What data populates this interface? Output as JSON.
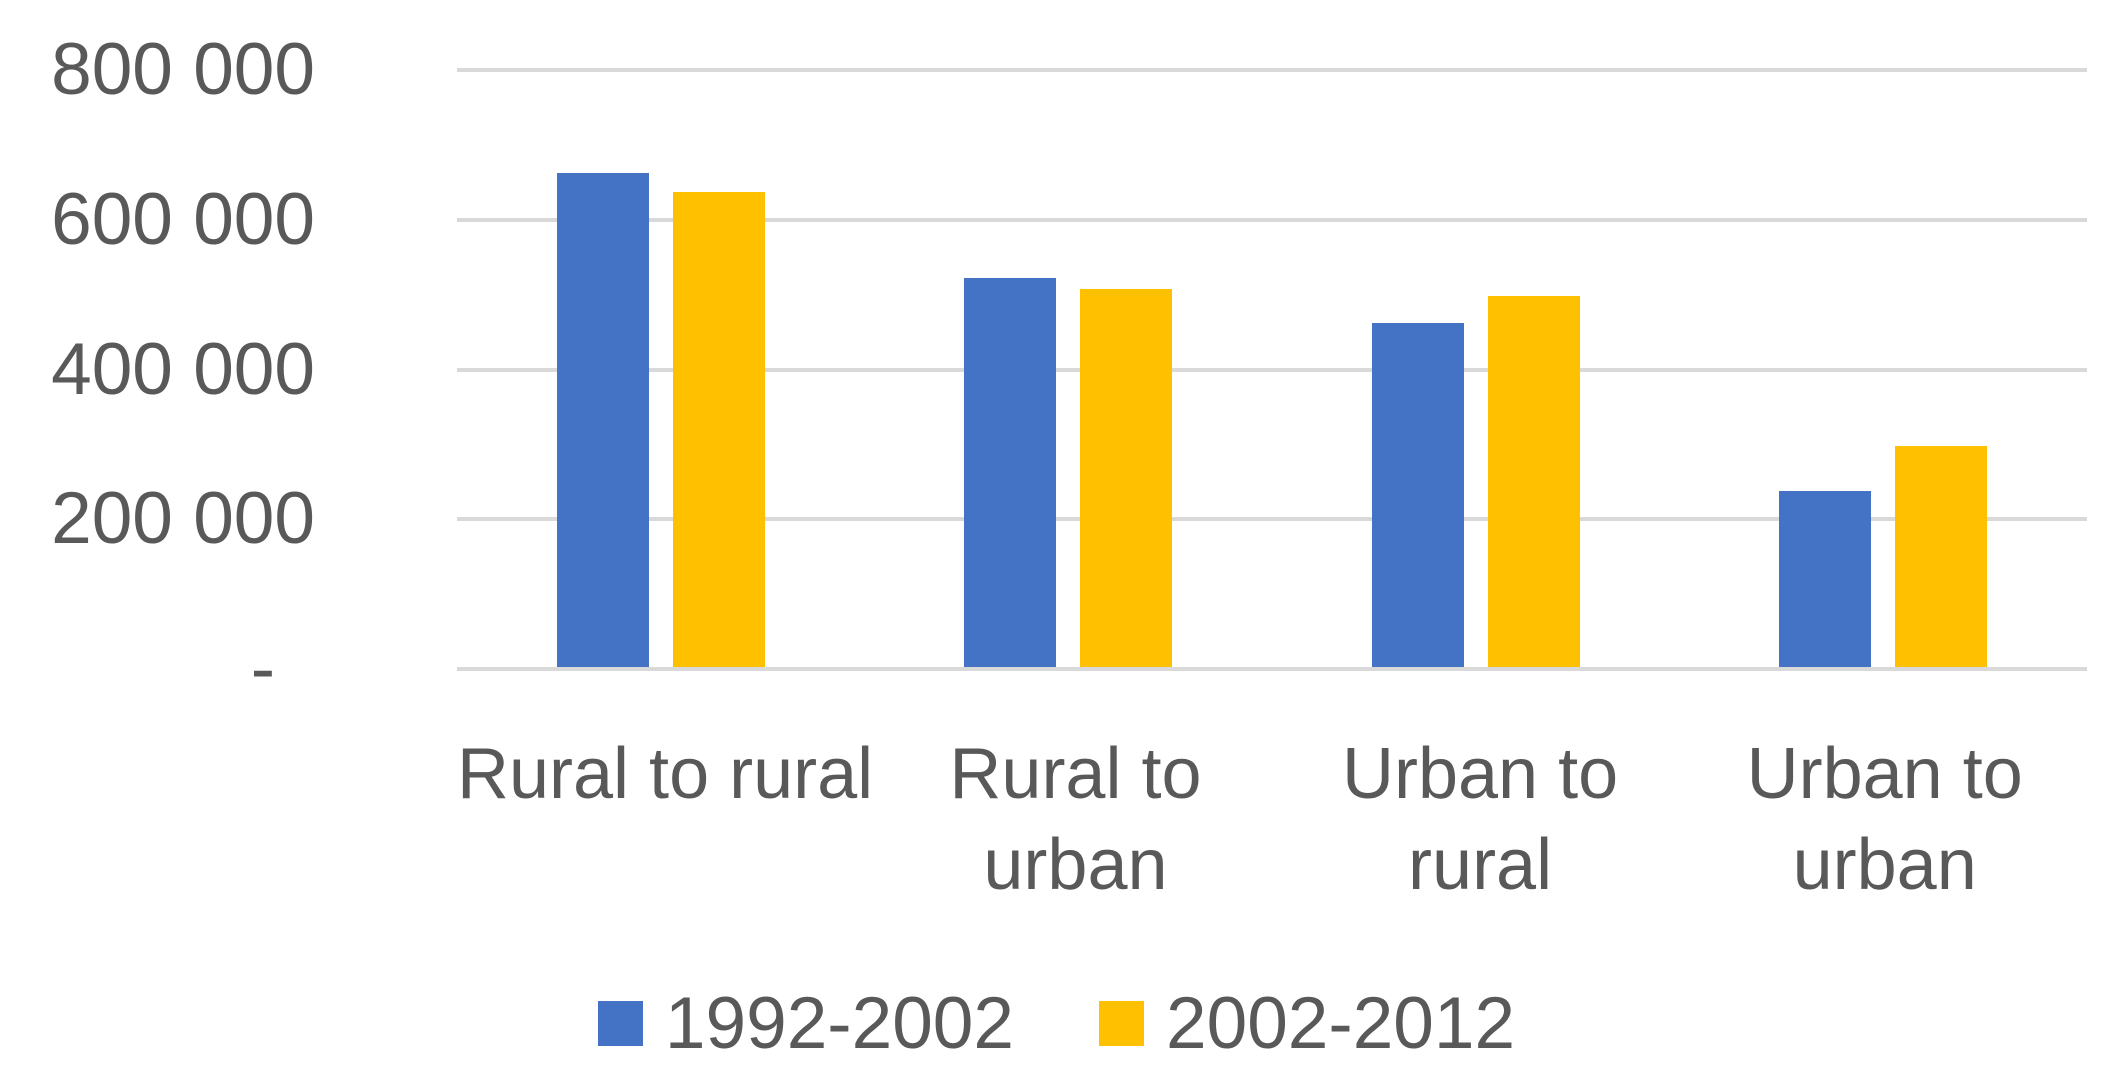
{
  "chart_data": {
    "type": "bar",
    "title": "",
    "xlabel": "",
    "ylabel": "",
    "categories": [
      "Rural to rural",
      "Rural to urban",
      "Urban to rural",
      "Urban to urban"
    ],
    "category_lines": [
      [
        "Rural to rural"
      ],
      [
        "Rural to",
        "urban"
      ],
      [
        "Urban to",
        "rural"
      ],
      [
        "Urban to",
        "urban"
      ]
    ],
    "series": [
      {
        "name": "1992-2002",
        "color": "#4472C4",
        "values": [
          660000,
          520000,
          460000,
          235000
        ]
      },
      {
        "name": "2002-2012",
        "color": "#FFC000",
        "values": [
          635000,
          505000,
          495000,
          295000
        ]
      }
    ],
    "ylim": [
      0,
      800000
    ],
    "y_ticks": [
      {
        "value": 800000,
        "label": "800 000"
      },
      {
        "value": 600000,
        "label": "600 000"
      },
      {
        "value": 400000,
        "label": "400 000"
      },
      {
        "value": 200000,
        "label": "200 000"
      },
      {
        "value": 0,
        "label": "-"
      }
    ],
    "grid": "horizontal",
    "legend_position": "bottom",
    "colors": {
      "gridline": "#D9D9D9",
      "text": "#595959",
      "background": "#FFFFFF"
    }
  }
}
